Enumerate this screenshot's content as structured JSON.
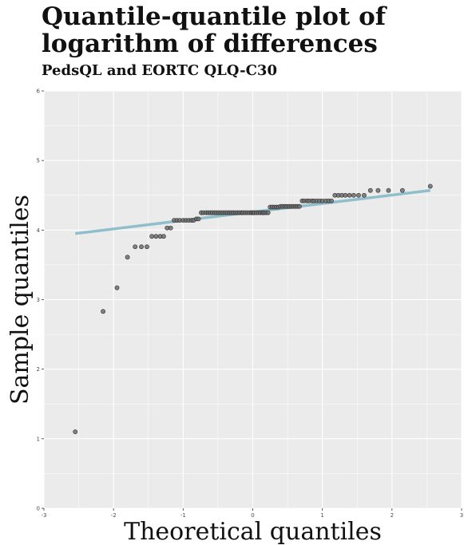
{
  "chart_data": {
    "type": "scatter",
    "title": "Quantile-quantile plot of logarithm of differences",
    "subtitle": "PedsQL and EORTC QLQ-C30",
    "xlabel": "Theoretical quantiles",
    "ylabel": "Sample quantiles",
    "xlim": [
      -3.0,
      3.0
    ],
    "ylim": [
      0,
      6
    ],
    "xticks": [
      -3,
      -2,
      -1,
      0,
      1,
      2,
      3
    ],
    "yticks": [
      0,
      1,
      2,
      3,
      4,
      5,
      6
    ],
    "grid": true,
    "background": "#ebebeb",
    "grid_color": "#ffffff",
    "point_color": "#6e6e6e",
    "line_color": "#8fbfcc",
    "reference_line": {
      "x": [
        -2.55,
        2.55
      ],
      "y": [
        3.95,
        4.57
      ]
    },
    "points": {
      "x": [
        -2.55,
        -2.15,
        -1.95,
        -1.8,
        -1.69,
        -1.6,
        -1.52,
        -1.45,
        -1.39,
        -1.33,
        -1.28,
        -1.23,
        -1.18,
        -1.13,
        -1.09,
        -1.05,
        -1.0,
        -0.96,
        -0.92,
        -0.88,
        -0.85,
        -0.81,
        -0.78,
        -0.74,
        -0.71,
        -0.67,
        -0.64,
        -0.61,
        -0.58,
        -0.55,
        -0.52,
        -0.49,
        -0.46,
        -0.43,
        -0.4,
        -0.37,
        -0.34,
        -0.31,
        -0.28,
        -0.25,
        -0.22,
        -0.19,
        -0.16,
        -0.14,
        -0.11,
        -0.08,
        -0.05,
        -0.02,
        0.0,
        0.02,
        0.05,
        0.08,
        0.11,
        0.14,
        0.16,
        0.19,
        0.22,
        0.25,
        0.28,
        0.31,
        0.34,
        0.37,
        0.4,
        0.43,
        0.46,
        0.49,
        0.52,
        0.55,
        0.58,
        0.61,
        0.64,
        0.67,
        0.71,
        0.74,
        0.78,
        0.81,
        0.85,
        0.88,
        0.92,
        0.96,
        1.0,
        1.05,
        1.09,
        1.13,
        1.18,
        1.23,
        1.28,
        1.33,
        1.39,
        1.45,
        1.52,
        1.6,
        1.69,
        1.8,
        1.95,
        2.15,
        2.55
      ],
      "y": [
        1.1,
        2.83,
        3.17,
        3.61,
        3.76,
        3.76,
        3.76,
        3.91,
        3.91,
        3.91,
        3.91,
        4.03,
        4.03,
        4.14,
        4.14,
        4.14,
        4.14,
        4.14,
        4.14,
        4.14,
        4.14,
        4.16,
        4.16,
        4.25,
        4.25,
        4.25,
        4.25,
        4.25,
        4.25,
        4.25,
        4.25,
        4.25,
        4.25,
        4.25,
        4.25,
        4.25,
        4.25,
        4.25,
        4.25,
        4.25,
        4.25,
        4.25,
        4.25,
        4.25,
        4.25,
        4.25,
        4.25,
        4.25,
        4.25,
        4.25,
        4.25,
        4.25,
        4.25,
        4.25,
        4.25,
        4.25,
        4.25,
        4.33,
        4.33,
        4.33,
        4.33,
        4.33,
        4.34,
        4.34,
        4.34,
        4.34,
        4.34,
        4.34,
        4.34,
        4.34,
        4.34,
        4.34,
        4.42,
        4.42,
        4.42,
        4.42,
        4.42,
        4.42,
        4.42,
        4.42,
        4.42,
        4.42,
        4.42,
        4.42,
        4.5,
        4.5,
        4.5,
        4.5,
        4.5,
        4.5,
        4.5,
        4.5,
        4.57,
        4.57,
        4.57,
        4.57,
        4.63
      ]
    }
  }
}
